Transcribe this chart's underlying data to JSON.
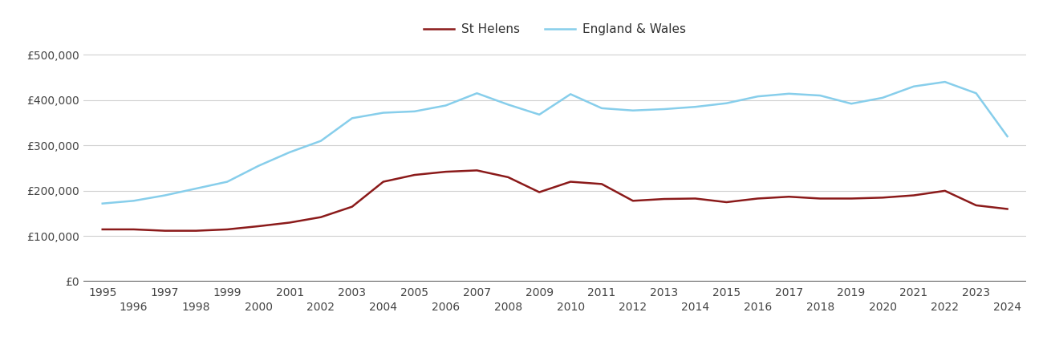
{
  "st_helens_years": [
    1995,
    1996,
    1997,
    1998,
    1999,
    2000,
    2001,
    2002,
    2003,
    2004,
    2005,
    2006,
    2007,
    2008,
    2009,
    2010,
    2011,
    2012,
    2013,
    2014,
    2015,
    2016,
    2017,
    2018,
    2019,
    2020,
    2021,
    2022,
    2023,
    2024
  ],
  "st_helens_values": [
    115000,
    115000,
    112000,
    112000,
    115000,
    122000,
    130000,
    142000,
    165000,
    220000,
    235000,
    242000,
    245000,
    230000,
    197000,
    220000,
    215000,
    178000,
    182000,
    183000,
    175000,
    183000,
    187000,
    183000,
    183000,
    185000,
    190000,
    200000,
    168000,
    160000
  ],
  "ew_years": [
    1995,
    1996,
    1997,
    1998,
    1999,
    2000,
    2001,
    2002,
    2003,
    2004,
    2005,
    2006,
    2007,
    2008,
    2009,
    2010,
    2011,
    2012,
    2013,
    2014,
    2015,
    2016,
    2017,
    2018,
    2019,
    2020,
    2021,
    2022,
    2023,
    2024
  ],
  "ew_values": [
    172000,
    178000,
    190000,
    205000,
    220000,
    255000,
    285000,
    310000,
    360000,
    372000,
    375000,
    388000,
    415000,
    390000,
    368000,
    413000,
    382000,
    377000,
    380000,
    385000,
    393000,
    408000,
    414000,
    410000,
    392000,
    405000,
    430000,
    440000,
    415000,
    320000
  ],
  "st_helens_color": "#8B1A1A",
  "ew_color": "#87CEEB",
  "st_helens_label": "St Helens",
  "ew_label": "England & Wales",
  "ylim": [
    0,
    525000
  ],
  "yticks": [
    0,
    100000,
    200000,
    300000,
    400000,
    500000
  ],
  "ytick_labels": [
    "£0",
    "£100,000",
    "£200,000",
    "£300,000",
    "£400,000",
    "£500,000"
  ],
  "bg_color": "#ffffff",
  "grid_color": "#d0d0d0",
  "line_width": 1.8,
  "legend_fontsize": 11,
  "tick_fontsize": 10
}
